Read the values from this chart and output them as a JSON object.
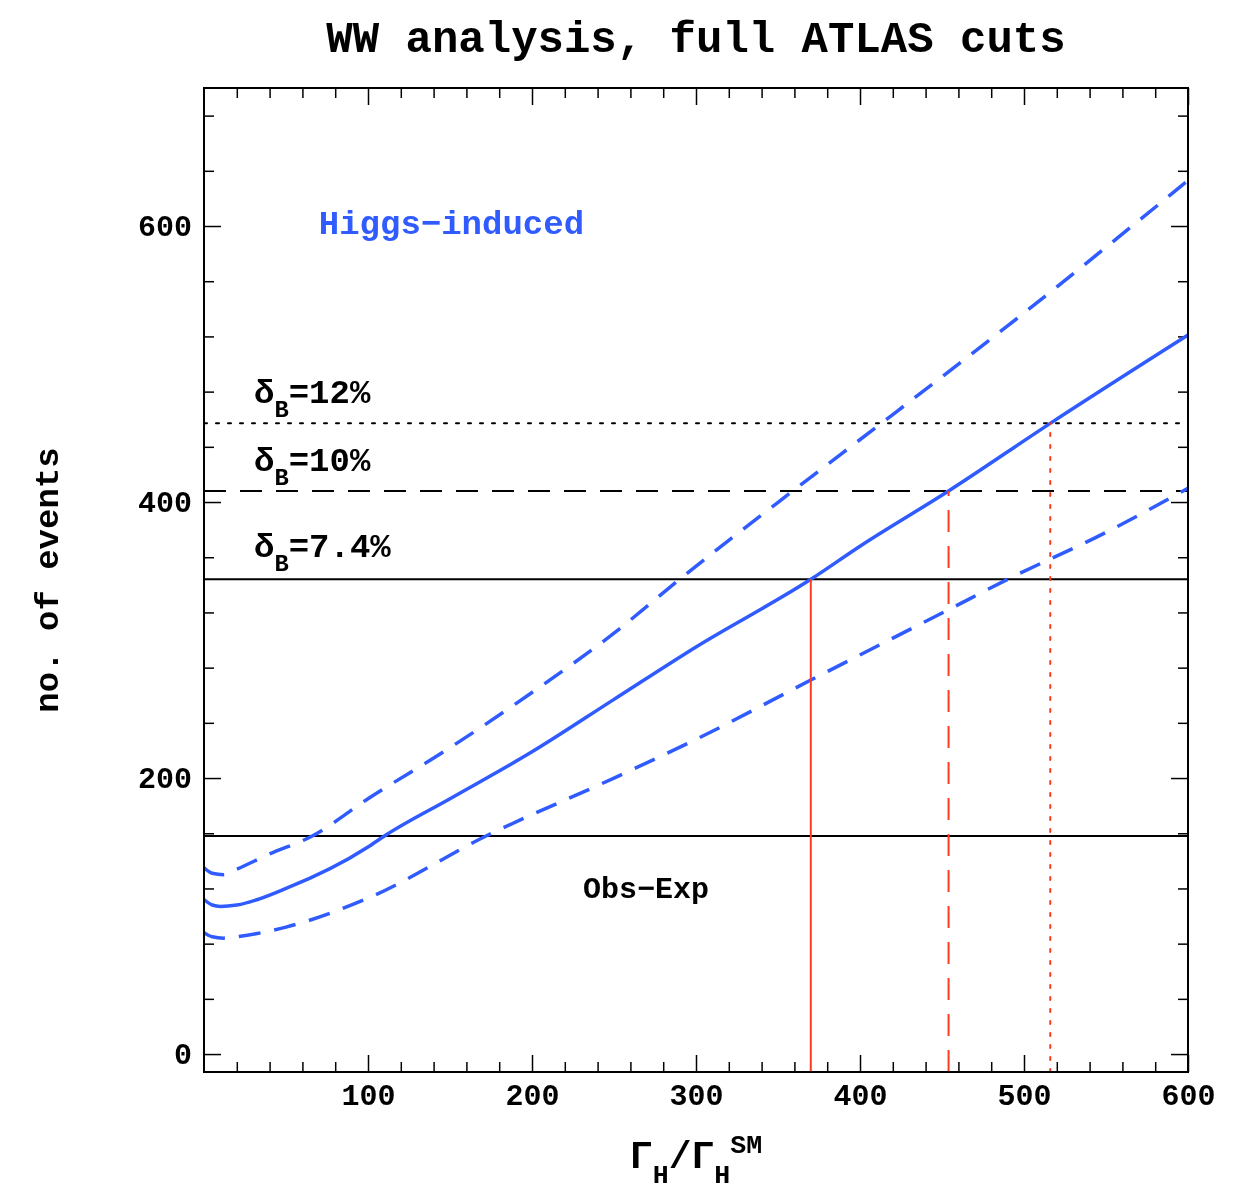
{
  "chart_data": {
    "type": "line",
    "title": "WW analysis, full ATLAS cuts",
    "xlabel": "Γ$_{H}$/Γ$_{H}$$^{SM}$",
    "ylabel": "no. of events",
    "xlim": [
      0,
      600
    ],
    "ylim": [
      -13,
      700
    ],
    "xticks": [
      {
        "value": 20,
        "label": null
      },
      {
        "value": 40,
        "label": null
      },
      {
        "value": 60,
        "label": null
      },
      {
        "value": 80,
        "label": null
      },
      100,
      {
        "value": 120,
        "label": null
      },
      {
        "value": 140,
        "label": null
      },
      {
        "value": 160,
        "label": null
      },
      {
        "value": 180,
        "label": null
      },
      200,
      {
        "value": 220,
        "label": null
      },
      {
        "value": 240,
        "label": null
      },
      {
        "value": 260,
        "label": null
      },
      {
        "value": 280,
        "label": null
      },
      300,
      {
        "value": 320,
        "label": null
      },
      {
        "value": 340,
        "label": null
      },
      {
        "value": 360,
        "label": null
      },
      {
        "value": 380,
        "label": null
      },
      400,
      {
        "value": 420,
        "label": null
      },
      {
        "value": 440,
        "label": null
      },
      {
        "value": 460,
        "label": null
      },
      {
        "value": 480,
        "label": null
      },
      500,
      {
        "value": 520,
        "label": null
      },
      {
        "value": 540,
        "label": null
      },
      {
        "value": 560,
        "label": null
      },
      {
        "value": 580,
        "label": null
      },
      600
    ],
    "yticks": [
      0,
      {
        "value": 40,
        "label": null
      },
      {
        "value": 80,
        "label": null
      },
      {
        "value": 120,
        "label": null
      },
      {
        "value": 160,
        "label": null
      },
      200,
      {
        "value": 240,
        "label": null
      },
      {
        "value": 280,
        "label": null
      },
      {
        "value": 320,
        "label": null
      },
      {
        "value": 360,
        "label": null
      },
      400,
      {
        "value": 440,
        "label": null
      },
      {
        "value": 480,
        "label": null
      },
      {
        "value": 520,
        "label": null
      },
      {
        "value": 560,
        "label": null
      },
      600,
      {
        "value": 640,
        "label": null
      },
      {
        "value": 680,
        "label": null
      }
    ],
    "grid": false,
    "series": [
      {
        "name": "Higgs−induced",
        "color": "#2f5bff",
        "line_style": "solid",
        "x": [
          0,
          5,
          10,
          20,
          50,
          100,
          110,
          150,
          200,
          250,
          300,
          370,
          400,
          454,
          516,
          600
        ],
        "values": [
          112,
          108,
          107,
          108,
          120,
          150,
          158,
          185,
          219,
          257,
          295,
          344,
          368,
          408,
          457,
          521
        ]
      },
      {
        "color": "#2f5bff",
        "line_style": "dashed",
        "x": [
          0,
          5,
          12,
          20,
          40,
          66,
          100,
          150,
          200,
          250,
          290,
          359,
          413,
          500,
          600
        ],
        "values": [
          135,
          131,
          130,
          134,
          145,
          158,
          185,
          222,
          262,
          305,
          344,
          408,
          457,
          537,
          633
        ]
      },
      {
        "color": "#2f5bff",
        "line_style": "dashed",
        "x": [
          0,
          5,
          12,
          20,
          50,
          100,
          172,
          250,
          300,
          370,
          454,
          490,
          550,
          600
        ],
        "values": [
          88,
          85,
          84,
          85,
          92,
          113,
          158,
          200,
          228,
          271,
          322,
          344,
          378,
          410
        ]
      },
      {
        "color": "#ff3b1f",
        "line_style": "solid",
        "x": [
          370,
          370
        ],
        "values": [
          -13,
          344
        ]
      },
      {
        "color": "#ff3b1f",
        "line_style": "dashed",
        "x": [
          454,
          454
        ],
        "values": [
          -13,
          408
        ]
      },
      {
        "color": "#ff3b1f",
        "line_style": "dotted",
        "x": [
          516,
          516
        ],
        "values": [
          -13,
          457
        ]
      }
    ],
    "ref_lines": [
      {
        "axis": "y",
        "value": 457,
        "color": "#000000",
        "line_style": "dotted"
      },
      {
        "axis": "y",
        "value": 408,
        "color": "#000000",
        "line_style": "dashed"
      },
      {
        "axis": "y",
        "value": 344,
        "color": "#000000",
        "line_style": "solid"
      },
      {
        "axis": "y",
        "value": 158,
        "color": "#000000",
        "line_style": "solid"
      }
    ],
    "annotations": [
      "δ$_{B}$=12%",
      "δ$_{B}$=10%",
      "δ$_{B}$=7.4%",
      "Obs−Exp"
    ]
  }
}
